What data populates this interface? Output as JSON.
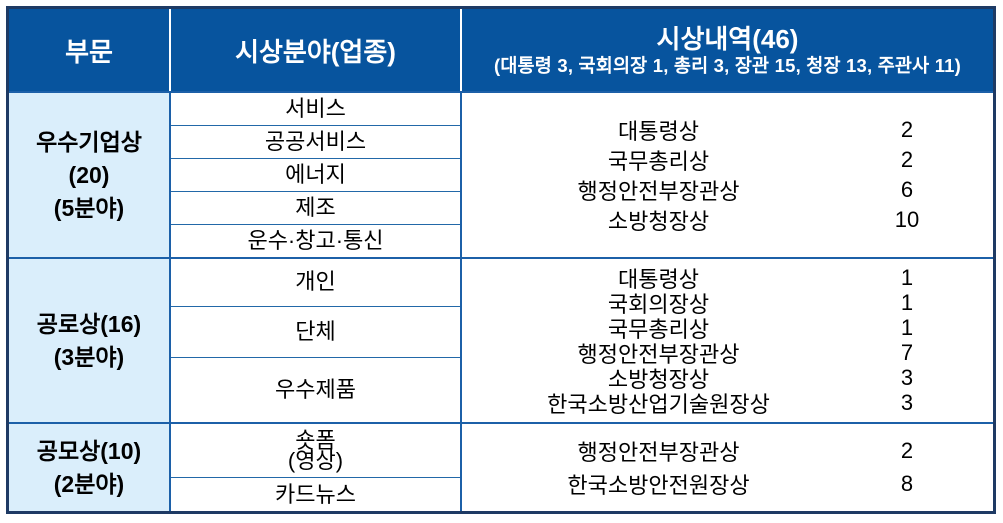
{
  "table": {
    "header": {
      "division": "부문",
      "field": "시상분야(업종)",
      "details_title": "시상내역(46)",
      "details_subtitle": "(대통령 3, 국회의장 1, 총리 3, 장관 15, 청장 13, 주관사 11)"
    },
    "groups": [
      {
        "category": "우수기업상\n(20)\n(5분야)",
        "fields": [
          "서비스",
          "공공서비스",
          "에너지",
          "제조",
          "운수·창고·통신"
        ],
        "awards": [
          {
            "name": "대통령상",
            "count": "2"
          },
          {
            "name": "국무총리상",
            "count": "2"
          },
          {
            "name": "행정안전부장관상",
            "count": "6"
          },
          {
            "name": "소방청장상",
            "count": "10"
          }
        ]
      },
      {
        "category": "공로상(16)\n(3분야)",
        "fields": [
          "개인",
          "단체",
          "우수제품"
        ],
        "awards": [
          {
            "name": "대통령상",
            "count": "1"
          },
          {
            "name": "국회의장상",
            "count": "1"
          },
          {
            "name": "국무총리상",
            "count": "1"
          },
          {
            "name": "행정안전부장관상",
            "count": "7"
          },
          {
            "name": "소방청장상",
            "count": "3"
          },
          {
            "name": "한국소방산업기술원장상",
            "count": "3"
          }
        ]
      },
      {
        "category": "공모상(10)\n(2분야)",
        "fields": [
          "숏폼\n(영상)",
          "카드뉴스"
        ],
        "awards": [
          {
            "name": "행정안전부장관상",
            "count": "2"
          },
          {
            "name": "한국소방안전원장상",
            "count": "8"
          }
        ]
      }
    ]
  },
  "colors": {
    "header_bg": "#07549E",
    "header_text": "#FFFFFF",
    "category_bg": "#DAEEFB",
    "grid_line": "#1C60A8",
    "outer_border": "#1E3A64",
    "body_text": "#000000"
  }
}
